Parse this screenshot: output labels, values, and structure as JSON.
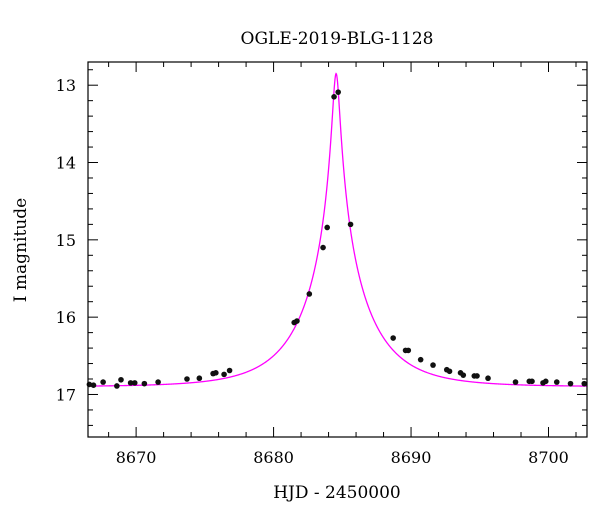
{
  "chart_data": {
    "type": "scatter",
    "title": "OGLE-2019-BLG-1128",
    "xlabel": "HJD - 2450000",
    "ylabel": "I magnitude",
    "xlim": [
      8666.5,
      8702.8
    ],
    "ylim": [
      17.55,
      12.7
    ],
    "y_inverted": true,
    "grid": false,
    "x_ticks": [
      8670,
      8680,
      8690,
      8700
    ],
    "x_tick_labels": [
      "8670",
      "8680",
      "8690",
      "8700"
    ],
    "x_minor_step": 2,
    "y_ticks": [
      13,
      14,
      15,
      16,
      17
    ],
    "y_tick_labels": [
      "13",
      "14",
      "15",
      "16",
      "17"
    ],
    "y_minor_step": 0.2,
    "colors": {
      "model": "#ff00ff",
      "points": "#111111",
      "axes": "#000000"
    },
    "series": [
      {
        "kind": "points",
        "x": [
          8666.6,
          8666.9,
          8667.6,
          8668.6,
          8668.9,
          8669.6,
          8669.9,
          8670.6,
          8671.6,
          8673.7,
          8674.6,
          8675.6,
          8675.8,
          8676.4,
          8676.8,
          8681.5,
          8681.7,
          8682.6,
          8683.6,
          8683.9,
          8684.4,
          8684.7,
          8685.6,
          8688.7,
          8689.6,
          8689.8,
          8690.7,
          8691.6,
          8692.6,
          8692.8,
          8693.6,
          8693.8,
          8694.6,
          8694.8,
          8695.6,
          8697.6,
          8698.6,
          8698.8,
          8699.6,
          8699.8,
          8700.6,
          8701.6,
          8702.6
        ],
        "y": [
          16.87,
          16.88,
          16.84,
          16.89,
          16.81,
          16.85,
          16.85,
          16.86,
          16.84,
          16.8,
          16.79,
          16.73,
          16.72,
          16.74,
          16.69,
          16.07,
          16.05,
          15.7,
          15.1,
          14.84,
          13.15,
          13.09,
          14.8,
          16.27,
          16.43,
          16.43,
          16.55,
          16.62,
          16.68,
          16.7,
          16.72,
          16.75,
          16.76,
          16.76,
          16.79,
          16.84,
          16.83,
          16.83,
          16.85,
          16.83,
          16.84,
          16.86,
          16.86
        ]
      },
      {
        "kind": "model",
        "t0": 8684.55,
        "peak_mag": 12.85,
        "baseline_mag": 16.9,
        "tE": 4.5,
        "u0": 0.055
      }
    ]
  }
}
